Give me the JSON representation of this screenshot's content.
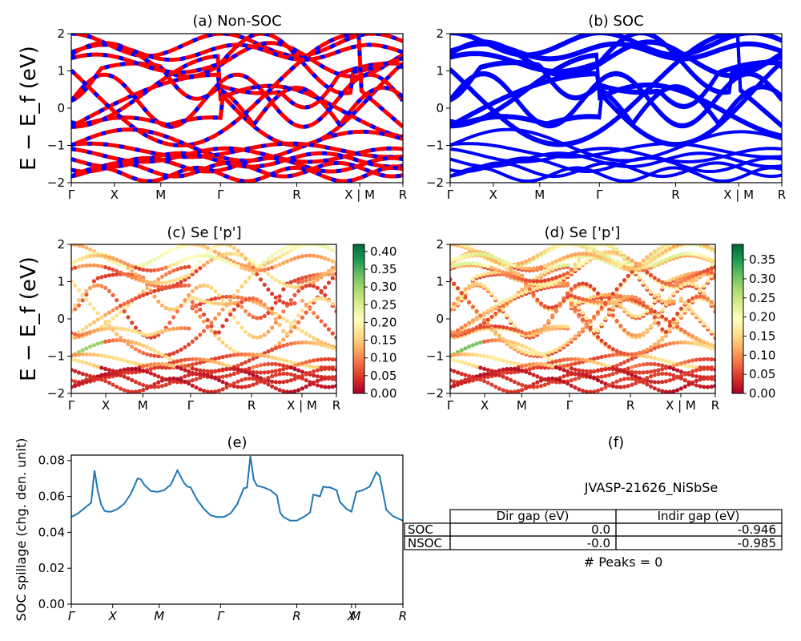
{
  "chart_data": [
    {
      "id": "a",
      "type": "line",
      "title": "(a) Non-SOC",
      "ylabel": "E − E_f (eV)",
      "ylim": [
        -2,
        2
      ],
      "yticks": [
        "−2",
        "−1",
        "0",
        "1",
        "2"
      ],
      "kpath": [
        "Γ",
        "X",
        "M",
        "Γ",
        "R",
        "X | M",
        "R"
      ],
      "kpath_pos": [
        0,
        0.13,
        0.27,
        0.45,
        0.68,
        0.87,
        1.0
      ],
      "style": "red-blue dashed bands",
      "colors": [
        "#ff0000",
        "#0000ff"
      ]
    },
    {
      "id": "b",
      "type": "line",
      "title": "(b) SOC",
      "ylim": [
        -2,
        2
      ],
      "yticks": [
        "−2",
        "−1",
        "0",
        "1",
        "2"
      ],
      "kpath": [
        "Γ",
        "X",
        "M",
        "Γ",
        "R",
        "X | M",
        "R"
      ],
      "kpath_pos": [
        0,
        0.13,
        0.27,
        0.45,
        0.68,
        0.87,
        1.0
      ],
      "style": "blue bands",
      "colors": [
        "#0000ff"
      ]
    },
    {
      "id": "c",
      "type": "scatter",
      "title": "(c)  Se ['p']",
      "ylabel": "E − E_f (eV)",
      "ylim": [
        -2,
        2
      ],
      "yticks": [
        "−2",
        "−1",
        "0",
        "1",
        "2"
      ],
      "kpath": [
        "Γ",
        "X",
        "M",
        "Γ",
        "R",
        "X | M",
        "R"
      ],
      "kpath_pos": [
        0,
        0.13,
        0.27,
        0.45,
        0.68,
        0.87,
        1.0
      ],
      "colorbar": {
        "colormap": "RdYlGn",
        "range": [
          0,
          0.42
        ],
        "ticks": [
          "0.00",
          "0.05",
          "0.10",
          "0.15",
          "0.20",
          "0.25",
          "0.30",
          "0.35",
          "0.40"
        ]
      }
    },
    {
      "id": "d",
      "type": "scatter",
      "title": "(d) Se ['p']",
      "ylim": [
        -2,
        2
      ],
      "yticks": [
        "−2",
        "−1",
        "0",
        "1",
        "2"
      ],
      "kpath": [
        "Γ",
        "X",
        "M",
        "Γ",
        "R",
        "X | M",
        "R"
      ],
      "kpath_pos": [
        0,
        0.13,
        0.27,
        0.45,
        0.68,
        0.87,
        1.0
      ],
      "colorbar": {
        "colormap": "RdYlGn",
        "range": [
          0,
          0.39
        ],
        "ticks": [
          "0.00",
          "0.05",
          "0.10",
          "0.15",
          "0.20",
          "0.25",
          "0.30",
          "0.35"
        ]
      }
    },
    {
      "id": "e",
      "type": "line",
      "title": "(e)",
      "ylabel": "SOC spillage (chg. den. unit)",
      "ylim": [
        0,
        0.083
      ],
      "yticks": [
        "0.00",
        "0.02",
        "0.04",
        "0.06",
        "0.08"
      ],
      "kpath": [
        "Γ",
        "X",
        "M",
        "Γ",
        "R",
        "X",
        "M",
        "R"
      ],
      "kpath_pos": [
        0,
        0.125,
        0.265,
        0.45,
        0.68,
        0.845,
        0.857,
        1.0
      ],
      "x": [
        0,
        0.02,
        0.04,
        0.06,
        0.07,
        0.08,
        0.09,
        0.1,
        0.11,
        0.12,
        0.14,
        0.16,
        0.18,
        0.2,
        0.21,
        0.22,
        0.24,
        0.26,
        0.28,
        0.3,
        0.32,
        0.34,
        0.35,
        0.36,
        0.38,
        0.4,
        0.42,
        0.44,
        0.46,
        0.48,
        0.5,
        0.52,
        0.53,
        0.54,
        0.55,
        0.56,
        0.58,
        0.6,
        0.62,
        0.63,
        0.64,
        0.66,
        0.68,
        0.7,
        0.72,
        0.73,
        0.75,
        0.76,
        0.77,
        0.78,
        0.8,
        0.81,
        0.83,
        0.845,
        0.86,
        0.88,
        0.9,
        0.92,
        0.93,
        0.95,
        0.97,
        1.0
      ],
      "y": [
        0.0485,
        0.0505,
        0.0535,
        0.0565,
        0.0745,
        0.063,
        0.0555,
        0.052,
        0.0515,
        0.0515,
        0.053,
        0.056,
        0.0615,
        0.07,
        0.0695,
        0.0665,
        0.063,
        0.0625,
        0.0635,
        0.0665,
        0.0745,
        0.0675,
        0.0655,
        0.065,
        0.058,
        0.053,
        0.0495,
        0.0485,
        0.0485,
        0.0505,
        0.0555,
        0.0645,
        0.065,
        0.0825,
        0.0695,
        0.066,
        0.065,
        0.0635,
        0.0605,
        0.051,
        0.0485,
        0.0465,
        0.0465,
        0.0485,
        0.051,
        0.061,
        0.06,
        0.0655,
        0.065,
        0.065,
        0.0635,
        0.057,
        0.053,
        0.0515,
        0.0625,
        0.0635,
        0.0655,
        0.0735,
        0.0715,
        0.0525,
        0.049,
        0.0465
      ],
      "color": "#1f77b4"
    }
  ],
  "panel_f": {
    "label": "(f)",
    "title": "JVASP-21626_NiSbSe",
    "columns": [
      "Dir gap (eV)",
      "Indir gap (eV)"
    ],
    "rows": [
      {
        "label": "SOC",
        "dir": "0.0",
        "indir": "-0.946"
      },
      {
        "label": "NSOC",
        "dir": "-0.0",
        "indir": "-0.985"
      }
    ],
    "peaks": "# Peaks = 0"
  }
}
